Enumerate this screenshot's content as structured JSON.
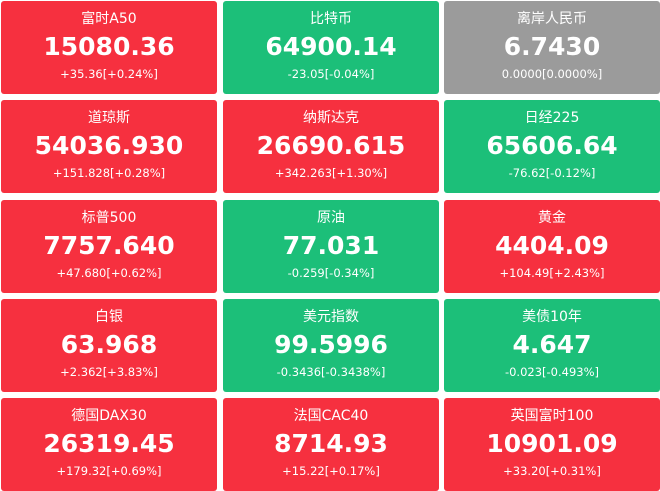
{
  "colors": {
    "up": "#f6303f",
    "down": "#1cbf79",
    "flat": "#9b9b9b",
    "text": "#ffffff"
  },
  "tiles": [
    {
      "name": "富时A50",
      "price": "15080.36",
      "change": "+35.36[+0.24%]",
      "trend": "up"
    },
    {
      "name": "比特币",
      "price": "64900.14",
      "change": "-23.05[-0.04%]",
      "trend": "down"
    },
    {
      "name": "离岸人民币",
      "price": "6.7430",
      "change": "0.0000[0.0000%]",
      "trend": "flat"
    },
    {
      "name": "道琼斯",
      "price": "54036.930",
      "change": "+151.828[+0.28%]",
      "trend": "up"
    },
    {
      "name": "纳斯达克",
      "price": "26690.615",
      "change": "+342.263[+1.30%]",
      "trend": "up"
    },
    {
      "name": "日经225",
      "price": "65606.64",
      "change": "-76.62[-0.12%]",
      "trend": "down"
    },
    {
      "name": "标普500",
      "price": "7757.640",
      "change": "+47.680[+0.62%]",
      "trend": "up"
    },
    {
      "name": "原油",
      "price": "77.031",
      "change": "-0.259[-0.34%]",
      "trend": "down"
    },
    {
      "name": "黄金",
      "price": "4404.09",
      "change": "+104.49[+2.43%]",
      "trend": "up"
    },
    {
      "name": "白银",
      "price": "63.968",
      "change": "+2.362[+3.83%]",
      "trend": "up"
    },
    {
      "name": "美元指数",
      "price": "99.5996",
      "change": "-0.3436[-0.3438%]",
      "trend": "down"
    },
    {
      "name": "美债10年",
      "price": "4.647",
      "change": "-0.023[-0.493%]",
      "trend": "down"
    },
    {
      "name": "德国DAX30",
      "price": "26319.45",
      "change": "+179.32[+0.69%]",
      "trend": "up"
    },
    {
      "name": "法国CAC40",
      "price": "8714.93",
      "change": "+15.22[+0.17%]",
      "trend": "up"
    },
    {
      "name": "英国富时100",
      "price": "10901.09",
      "change": "+33.20[+0.31%]",
      "trend": "up"
    }
  ]
}
